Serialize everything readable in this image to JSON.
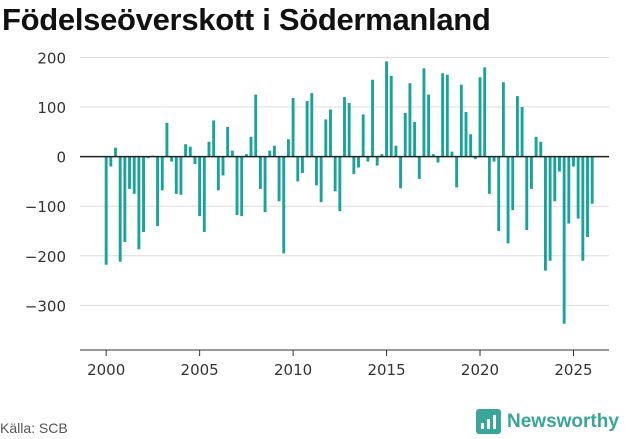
{
  "title": "Födelseöverskott i Södermanland",
  "source": "Källa: SCB",
  "brand": {
    "name": "Newsworthy",
    "icon": "newsworthy-logo-icon"
  },
  "colors": {
    "bar": "#1aa39a",
    "brand": "#3aa69a",
    "grid": "#dddddd",
    "zero_line": "#222222"
  },
  "chart_data": {
    "type": "bar",
    "title": "Födelseöverskott i Södermanland",
    "xlabel": "",
    "ylabel": "",
    "ylim": [
      -390,
      215
    ],
    "xlim": [
      1998.6,
      2026.9
    ],
    "grid": true,
    "yticks": [
      200,
      100,
      0,
      -100,
      -200,
      -300
    ],
    "ytick_labels": [
      "200",
      "100",
      "0",
      "−100",
      "−200",
      "−300"
    ],
    "xticks": [
      2000,
      2005,
      2010,
      2015,
      2020,
      2025
    ],
    "xtick_labels": [
      "2000",
      "2005",
      "2010",
      "2015",
      "2020",
      "2025"
    ],
    "start_year": 2000,
    "periods_per_year": 4,
    "values": [
      -218,
      -20,
      18,
      -212,
      -172,
      -65,
      -75,
      -187,
      -152,
      -3,
      2,
      -140,
      -68,
      68,
      -10,
      -75,
      -77,
      25,
      20,
      -15,
      -120,
      -152,
      30,
      73,
      -68,
      -38,
      60,
      12,
      -118,
      -120,
      5,
      40,
      125,
      -65,
      -112,
      12,
      22,
      -90,
      -195,
      35,
      118,
      -50,
      -33,
      112,
      128,
      -58,
      -92,
      75,
      95,
      -70,
      -110,
      120,
      108,
      -35,
      -22,
      85,
      -10,
      155,
      -18,
      5,
      192,
      163,
      22,
      -64,
      88,
      148,
      70,
      -45,
      178,
      125,
      5,
      -12,
      168,
      165,
      10,
      -62,
      145,
      90,
      45,
      -5,
      160,
      180,
      -75,
      -10,
      -150,
      150,
      -175,
      -108,
      122,
      100,
      -148,
      -65,
      40,
      30,
      -230,
      -210,
      -90,
      -30,
      -337,
      -135,
      -20,
      -125,
      -210,
      -162,
      -95
    ]
  }
}
